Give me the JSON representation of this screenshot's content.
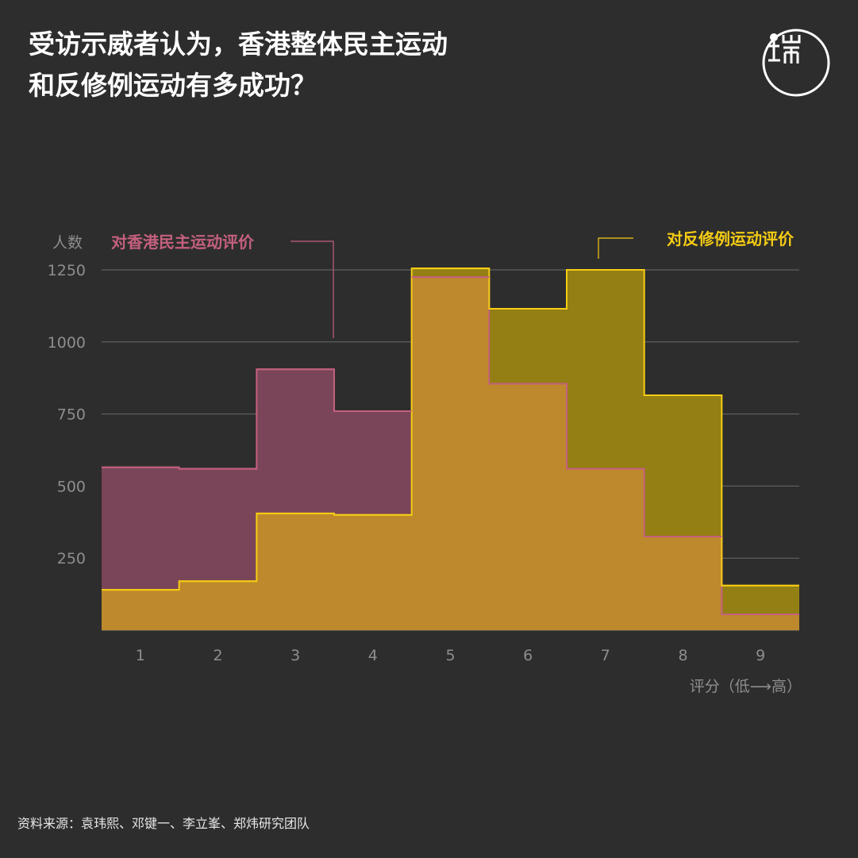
{
  "title": {
    "line1": "受访示威者认为，香港整体民主运动",
    "line2": "和反修例运动有多成功？"
  },
  "source": "资料来源：袁玮熙、邓键一、李立峯、郑炜研究团队",
  "colors": {
    "background": "#2d2d2d",
    "democracy_fill": "#7a4558",
    "democracy_line": "#c4607e",
    "antielab_fill": "#937f14",
    "antielab_line": "#f5cc14",
    "overlap_fill": "#bd892c",
    "axis": "#777777",
    "grid": "#6a6a6a",
    "tick_text": "#8e8e8e"
  },
  "chart_data": {
    "type": "area",
    "step": true,
    "ylabel": "人数",
    "xlabel": "评分（低⟶高）",
    "categories": [
      "1",
      "2",
      "3",
      "4",
      "5",
      "6",
      "7",
      "8",
      "9"
    ],
    "yticks": [
      "1250",
      "1000",
      "750",
      "500",
      "250"
    ],
    "ylim": [
      0,
      1250
    ],
    "grid": true,
    "series": [
      {
        "name": "对香港民主运动评价",
        "values": [
          565,
          560,
          905,
          760,
          1225,
          855,
          560,
          325,
          55
        ]
      },
      {
        "name": "对反修例运动评价",
        "values": [
          140,
          170,
          405,
          400,
          1255,
          1115,
          1250,
          815,
          155
        ]
      }
    ]
  }
}
